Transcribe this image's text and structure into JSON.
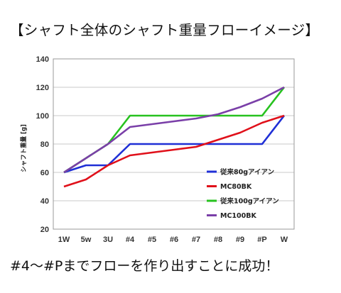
{
  "heading": "【シャフト全体のシャフト重量フローイメージ】",
  "caption": "#4〜#Pまでフローを作り出すことに成功！",
  "chart_data": {
    "type": "line",
    "ylabel": "シャフト重量 [g]",
    "xlabel": "",
    "title": "",
    "categories": [
      "1W",
      "5w",
      "3U",
      "#4",
      "#5",
      "#6",
      "#7",
      "#8",
      "#9",
      "#P",
      "W"
    ],
    "ylim": [
      20,
      140
    ],
    "yticks": [
      20,
      40,
      60,
      80,
      100,
      120,
      140
    ],
    "grid": true,
    "legend_position": "right",
    "series": [
      {
        "name": "従来80gアイアン",
        "color": "#1f2fd6",
        "values": [
          60,
          65,
          65,
          80,
          80,
          80,
          80,
          80,
          80,
          80,
          100
        ]
      },
      {
        "name": "MC80BK",
        "color": "#e0101a",
        "values": [
          50,
          55,
          65,
          72,
          74,
          76,
          78,
          83,
          88,
          95,
          100
        ]
      },
      {
        "name": "従来100gアイアン",
        "color": "#27c21f",
        "values": [
          60,
          70,
          80,
          100,
          100,
          100,
          100,
          100,
          100,
          100,
          120
        ]
      },
      {
        "name": "MC100BK",
        "color": "#7a3fa8",
        "values": [
          60,
          70,
          80,
          92,
          94,
          96,
          98,
          101,
          106,
          112,
          120
        ]
      }
    ]
  }
}
